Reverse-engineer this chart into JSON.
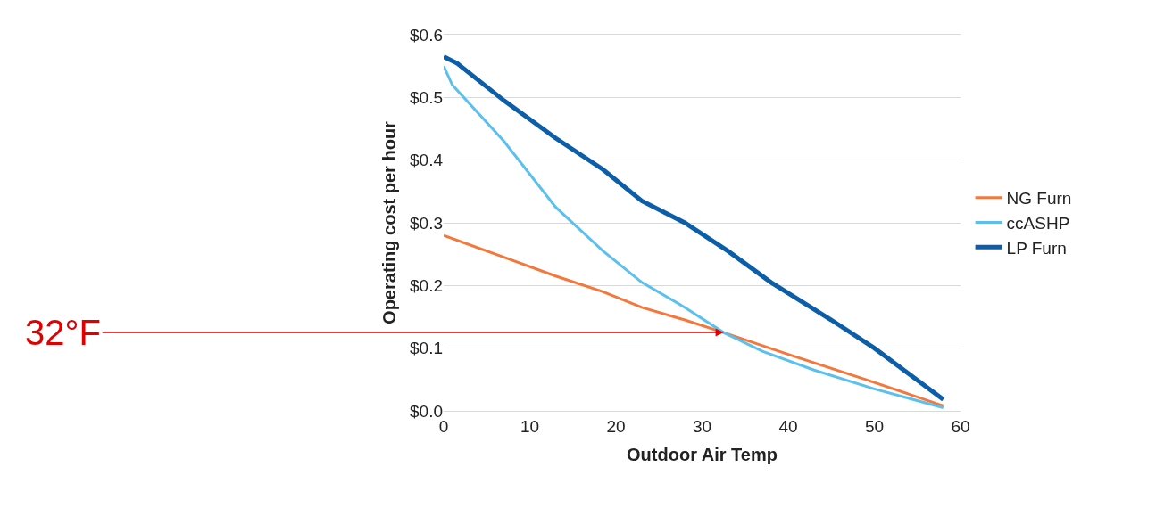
{
  "chart_data": {
    "type": "line",
    "xlabel": "Outdoor Air Temp",
    "ylabel": "Operating cost per hour",
    "series": [
      {
        "name": "NG Furn",
        "color": "#f4773c",
        "x": [
          0,
          1,
          7,
          13,
          18.5,
          23,
          28,
          32.5,
          40,
          49,
          58
        ],
        "values": [
          0.28,
          0.275,
          0.245,
          0.215,
          0.19,
          0.165,
          0.145,
          0.125,
          0.09,
          0.05,
          0.008
        ]
      },
      {
        "name": "ccASHP",
        "color": "#5bc0ee",
        "x": [
          0,
          1,
          7,
          13,
          18.5,
          23,
          28,
          32.5,
          37,
          43,
          50,
          58
        ],
        "values": [
          0.55,
          0.52,
          0.43,
          0.325,
          0.255,
          0.205,
          0.165,
          0.125,
          0.095,
          0.065,
          0.035,
          0.005
        ]
      },
      {
        "name": "LP Furn",
        "color": "#0d5ea8",
        "x": [
          0,
          1.5,
          7,
          13,
          18.5,
          23,
          28,
          33,
          38,
          45,
          50,
          58
        ],
        "values": [
          0.565,
          0.555,
          0.495,
          0.435,
          0.385,
          0.335,
          0.3,
          0.255,
          0.205,
          0.145,
          0.1,
          0.018
        ]
      }
    ],
    "xlim": [
      0,
      60
    ],
    "xticks": [
      0,
      10,
      20,
      30,
      40,
      50,
      60
    ],
    "ylim": [
      0,
      0.6
    ],
    "yticks": [
      {
        "value": 0,
        "label": "$0.0"
      },
      {
        "value": 0.1,
        "label": "$0.1"
      },
      {
        "value": 0.2,
        "label": "$0.2"
      },
      {
        "value": 0.3,
        "label": "$0.3"
      },
      {
        "value": 0.4,
        "label": "$0.4"
      },
      {
        "value": 0.5,
        "label": "$0.5"
      },
      {
        "value": 0.6,
        "label": "$0.6"
      }
    ],
    "grid": "y",
    "legend": "right",
    "marker": "none",
    "line_style": "solid",
    "annotations": [
      {
        "text": "32°F",
        "x": 32.5,
        "y": 0.125
      }
    ]
  }
}
